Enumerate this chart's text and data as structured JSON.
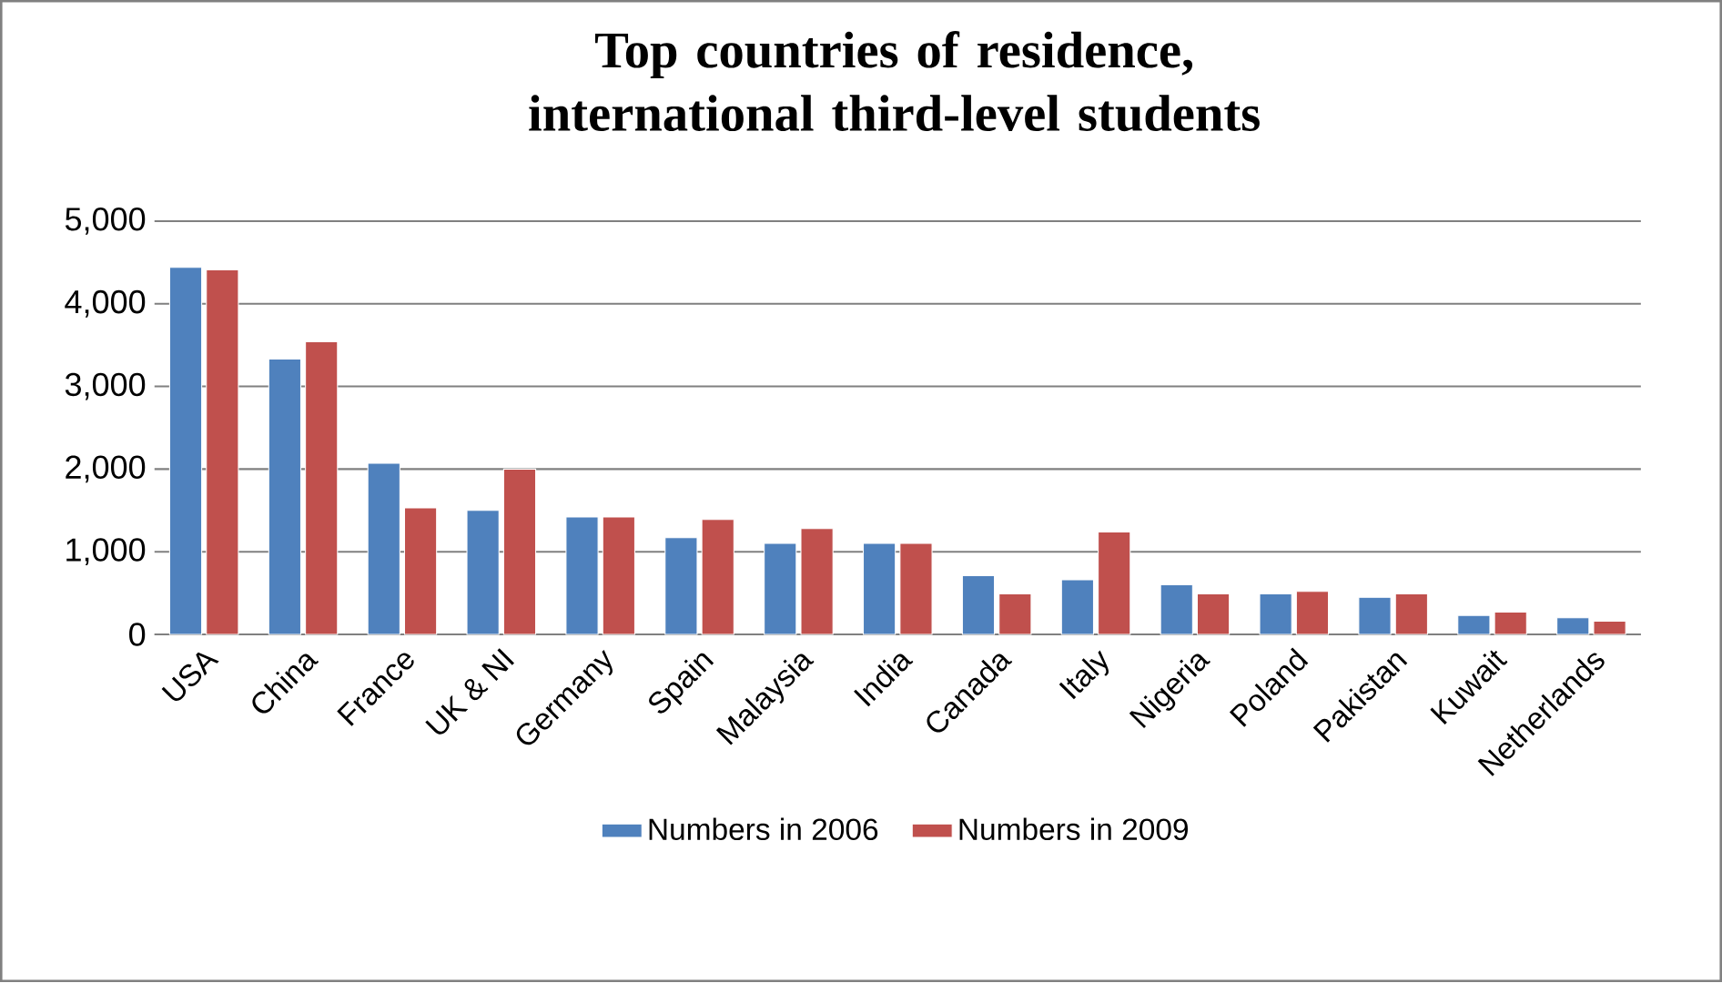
{
  "chart_data": {
    "type": "bar",
    "title": "Top countries of residence, international third-level students",
    "categories": [
      "USA",
      "China",
      "France",
      "UK & NI",
      "Germany",
      "Spain",
      "Malaysia",
      "India",
      "Canada",
      "Italy",
      "Nigeria",
      "Poland",
      "Pakistan",
      "Kuwait",
      "Netherlands"
    ],
    "series": [
      {
        "name": "Numbers in 2006",
        "color": "#4f81bd",
        "values": [
          4440,
          3330,
          2070,
          1500,
          1420,
          1170,
          1100,
          1100,
          710,
          660,
          600,
          490,
          450,
          230,
          200
        ]
      },
      {
        "name": "Numbers in 2009",
        "color": "#c0504d",
        "values": [
          4410,
          3540,
          1530,
          2000,
          1420,
          1390,
          1280,
          1100,
          490,
          1240,
          490,
          520,
          490,
          270,
          160
        ]
      }
    ],
    "ylim": [
      0,
      5000
    ],
    "yticks": [
      {
        "value": 0,
        "label": "0"
      },
      {
        "value": 1000,
        "label": "1,000"
      },
      {
        "value": 2000,
        "label": "2,000"
      },
      {
        "value": 3000,
        "label": "3,000"
      },
      {
        "value": 4000,
        "label": "4,000"
      },
      {
        "value": 5000,
        "label": "5,000"
      }
    ],
    "grid": "y",
    "legend": "bottom"
  }
}
